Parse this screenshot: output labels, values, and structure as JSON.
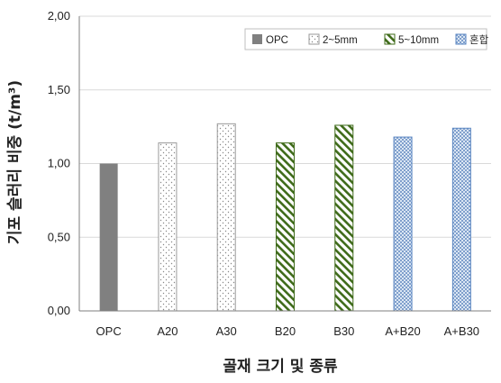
{
  "chart_data": {
    "type": "bar",
    "title": "",
    "xlabel": "골재 크기 및 종류",
    "ylabel": "기포 슬러리 비중 (t/m³)",
    "ylim": [
      0,
      2.0
    ],
    "yticks": [
      "0,00",
      "0,50",
      "1,00",
      "1,50",
      "2,00"
    ],
    "grid": true,
    "legend_position": "top-right",
    "categories": [
      "OPC",
      "A20",
      "A30",
      "B20",
      "B30",
      "A+B20",
      "A+B30"
    ],
    "values": [
      1.0,
      1.14,
      1.27,
      1.14,
      1.26,
      1.18,
      1.24
    ],
    "series_of_bar": [
      0,
      1,
      1,
      2,
      2,
      3,
      3
    ],
    "series": [
      {
        "name": "OPC",
        "pattern": "solid",
        "color": "#808080"
      },
      {
        "name": "2~5mm",
        "pattern": "dots",
        "color": "#9a9a9a"
      },
      {
        "name": "5~10mm",
        "pattern": "diagonal",
        "color": "#3f6b1a"
      },
      {
        "name": "혼합",
        "pattern": "crosshatch",
        "color": "#5a86c2"
      }
    ]
  }
}
